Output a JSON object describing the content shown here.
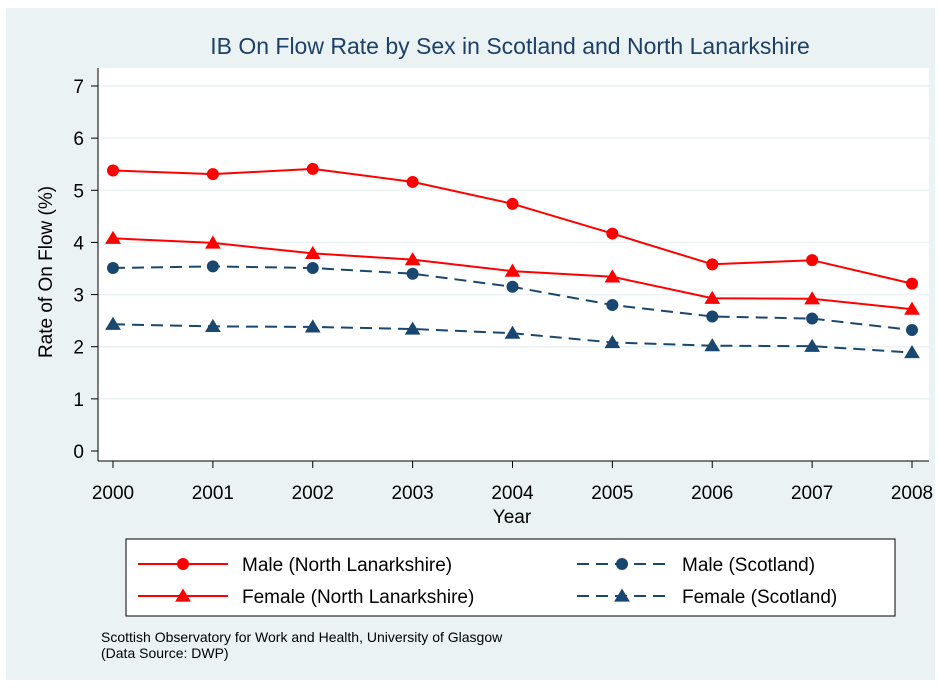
{
  "chart_data": {
    "type": "line",
    "title": "IB On Flow Rate by Sex in Scotland and North Lanarkshire",
    "xlabel": "Year",
    "ylabel": "Rate of On Flow (%)",
    "x": [
      2000,
      2001,
      2002,
      2003,
      2004,
      2005,
      2006,
      2007,
      2008
    ],
    "x_tick_labels": [
      "2000",
      "2001",
      "2002",
      "2003",
      "2004",
      "2005",
      "2006",
      "2007",
      "2008"
    ],
    "y_ticks": [
      0,
      1,
      2,
      3,
      4,
      5,
      6,
      7
    ],
    "y_tick_labels": [
      "0",
      "1",
      "2",
      "3",
      "4",
      "5",
      "6",
      "7"
    ],
    "ylim": [
      0,
      7
    ],
    "grid": "horizontal",
    "legend_position": "bottom",
    "series": [
      {
        "name": "Male (North Lanarkshire)",
        "values": [
          5.38,
          5.31,
          5.41,
          5.16,
          4.74,
          4.17,
          3.58,
          3.66,
          3.21
        ],
        "color": "#ff0000",
        "marker": "circle",
        "dash": "solid"
      },
      {
        "name": "Male (Scotland)",
        "values": [
          3.51,
          3.54,
          3.51,
          3.4,
          3.15,
          2.8,
          2.58,
          2.54,
          2.32
        ],
        "color": "#1a476f",
        "marker": "circle",
        "dash": "dashed"
      },
      {
        "name": "Female (North Lanarkshire)",
        "values": [
          4.08,
          3.99,
          3.79,
          3.67,
          3.45,
          3.34,
          2.93,
          2.92,
          2.72
        ],
        "color": "#ff0000",
        "marker": "triangle",
        "dash": "solid"
      },
      {
        "name": "Female (Scotland)",
        "values": [
          2.43,
          2.39,
          2.38,
          2.34,
          2.26,
          2.08,
          2.02,
          2.01,
          1.89
        ],
        "color": "#1a476f",
        "marker": "triangle",
        "dash": "dashed"
      }
    ],
    "note_lines": [
      "Scottish Observatory for Work and Health, University of Glasgow",
      "(Data Source: DWP)"
    ],
    "colors": {
      "background": "#eaf2f3",
      "plot_background": "#ffffff",
      "grid": "#eaf2f3",
      "title": "#1e3f66"
    }
  }
}
